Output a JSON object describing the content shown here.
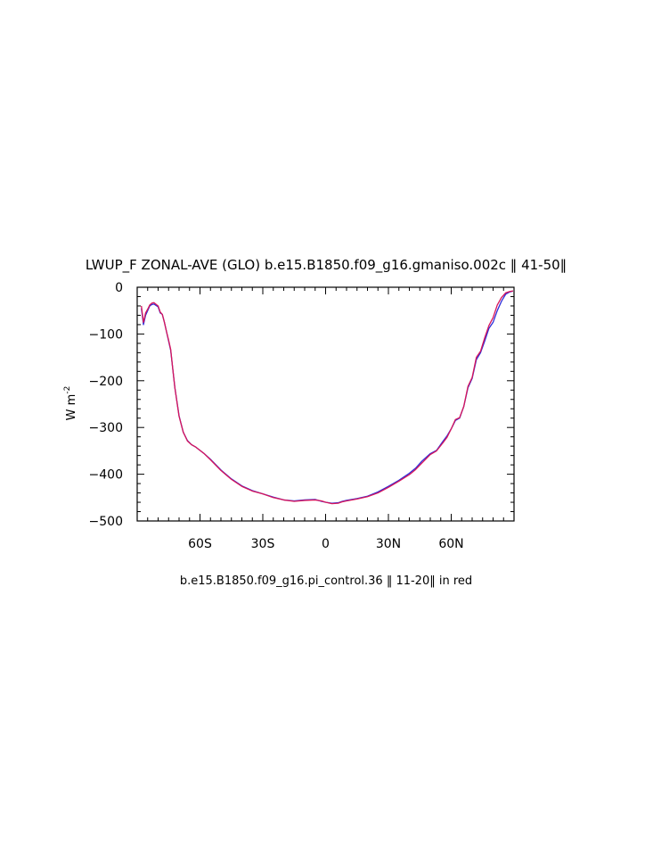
{
  "chart_data": {
    "type": "line",
    "title": "LWUP_F ZONAL-AVE (GLO) b.e15.B1850.f09_g16.gmaniso.002c ‖ 41-50‖",
    "caption": "b.e15.B1850.f09_g16.pi_control.36 ‖ 11-20‖ in red",
    "ylabel": {
      "main": "W m",
      "sup": "-2"
    },
    "xlim": [
      -90,
      90
    ],
    "ylim": [
      -500,
      0
    ],
    "x_ticks": [
      {
        "value": -60,
        "label": "60S"
      },
      {
        "value": -30,
        "label": "30S"
      },
      {
        "value": 0,
        "label": "0"
      },
      {
        "value": 30,
        "label": "30N"
      },
      {
        "value": 60,
        "label": "60N"
      }
    ],
    "y_ticks": [
      {
        "value": 0,
        "label": "0"
      },
      {
        "value": -100,
        "label": "−100"
      },
      {
        "value": -200,
        "label": "−200"
      },
      {
        "value": -300,
        "label": "−300"
      },
      {
        "value": -400,
        "label": "−400"
      },
      {
        "value": -500,
        "label": "−500"
      }
    ],
    "grid": false,
    "series": [
      {
        "color": "#2d2dd8",
        "x": [
          -88,
          -87,
          -86,
          -85,
          -84,
          -83,
          -82,
          -80,
          -79,
          -78,
          -77,
          -76,
          -75,
          -74,
          -73,
          -72,
          -70,
          -68,
          -66,
          -64,
          -62,
          -60,
          -58,
          -55,
          -50,
          -45,
          -40,
          -35,
          -30,
          -25,
          -20,
          -15,
          -10,
          -5,
          -2,
          0,
          3,
          6,
          8,
          10,
          15,
          20,
          25,
          30,
          35,
          40,
          43,
          46,
          50,
          53,
          56,
          58,
          60,
          62,
          64,
          66,
          68,
          70,
          72,
          74,
          76,
          78,
          80,
          82,
          84,
          86,
          88,
          89.5
        ],
        "y": [
          -45,
          -80,
          -60,
          -50,
          -40,
          -37,
          -36,
          -42,
          -55,
          -58,
          -75,
          -95,
          -115,
          -135,
          -175,
          -215,
          -275,
          -310,
          -328,
          -337,
          -342,
          -349,
          -356,
          -368,
          -391,
          -410,
          -425,
          -435,
          -442,
          -449,
          -455,
          -457,
          -455,
          -454,
          -458,
          -460,
          -462,
          -461,
          -458,
          -456,
          -452,
          -447,
          -438,
          -426,
          -413,
          -398,
          -387,
          -372,
          -356,
          -349,
          -330,
          -318,
          -303,
          -285,
          -280,
          -255,
          -215,
          -195,
          -155,
          -140,
          -115,
          -88,
          -75,
          -50,
          -30,
          -15,
          -10,
          -8
        ]
      },
      {
        "color": "#d8145a",
        "x": [
          -88,
          -87,
          -86,
          -85,
          -84,
          -83,
          -82,
          -80,
          -79,
          -78,
          -77,
          -76,
          -75,
          -74,
          -73,
          -72,
          -70,
          -68,
          -66,
          -64,
          -62,
          -60,
          -58,
          -55,
          -50,
          -45,
          -40,
          -35,
          -30,
          -25,
          -20,
          -15,
          -10,
          -5,
          -2,
          0,
          3,
          6,
          8,
          10,
          15,
          20,
          25,
          30,
          35,
          40,
          43,
          46,
          50,
          53,
          56,
          58,
          60,
          62,
          64,
          66,
          68,
          70,
          72,
          74,
          76,
          78,
          80,
          82,
          84,
          86,
          88,
          89.5
        ],
        "y": [
          -40,
          -75,
          -55,
          -47,
          -38,
          -34,
          -33,
          -40,
          -53,
          -58,
          -75,
          -95,
          -113,
          -133,
          -175,
          -215,
          -276,
          -310,
          -329,
          -337,
          -342,
          -349,
          -356,
          -369,
          -392,
          -411,
          -426,
          -436,
          -442,
          -450,
          -455,
          -458,
          -456,
          -455,
          -457,
          -460,
          -463,
          -462,
          -459,
          -457,
          -453,
          -448,
          -440,
          -428,
          -415,
          -401,
          -390,
          -376,
          -358,
          -350,
          -333,
          -321,
          -303,
          -283,
          -279,
          -255,
          -212,
          -193,
          -150,
          -137,
          -108,
          -82,
          -65,
          -38,
          -22,
          -12,
          -9,
          -8
        ]
      }
    ]
  }
}
